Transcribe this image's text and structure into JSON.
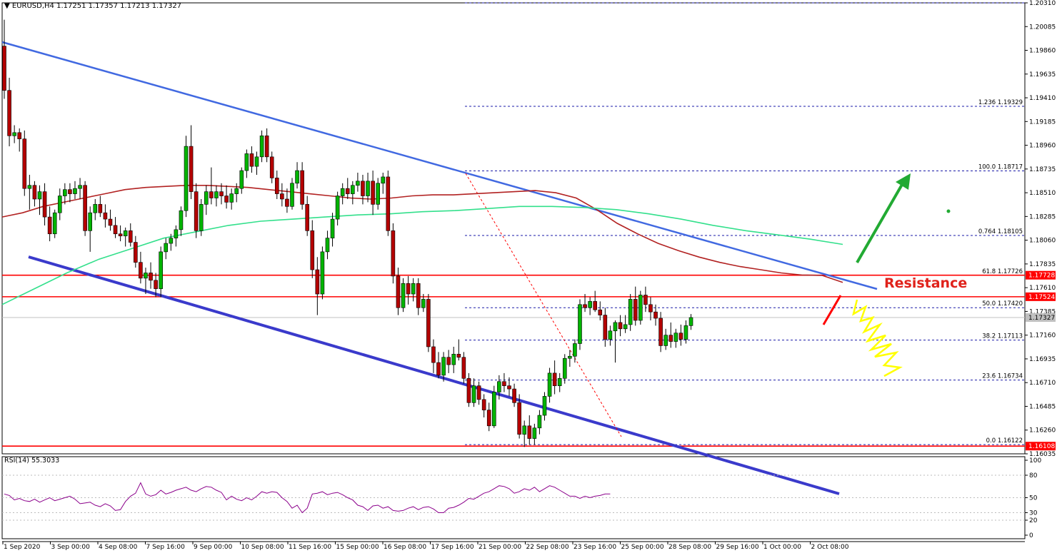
{
  "chart_data": {
    "type": "candlestick",
    "header": {
      "symbol": "EURUSD,H4",
      "ohlc": "1.17251 1.17357 1.17213 1.17327"
    },
    "price_axis": {
      "ylim": [
        1.16035,
        1.2031
      ],
      "ticks": [
        "1.20310",
        "1.20085",
        "1.19860",
        "1.19635",
        "1.19410",
        "1.19185",
        "1.18960",
        "1.18735",
        "1.18510",
        "1.18285",
        "1.18060",
        "1.17835",
        "1.17610",
        "1.17385",
        "1.17160",
        "1.16935",
        "1.16710",
        "1.16485",
        "1.16260",
        "1.16035"
      ],
      "current_price": "1.17327",
      "current_price_color": "#c0c0c0",
      "marked_prices": [
        "1.17728",
        "1.17524",
        "1.16108"
      ],
      "marked_color": "#ff0000"
    },
    "time_labels": [
      "1 Sep 2020",
      "3 Sep 00:00",
      "4 Sep 08:00",
      "7 Sep 16:00",
      "9 Sep 00:00",
      "10 Sep 08:00",
      "11 Sep 16:00",
      "15 Sep 00:00",
      "16 Sep 08:00",
      "17 Sep 16:00",
      "21 Sep 00:00",
      "22 Sep 08:00",
      "23 Sep 16:00",
      "25 Sep 00:00",
      "28 Sep 08:00",
      "29 Sep 16:00",
      "1 Oct 00:00",
      "2 Oct 08:00"
    ],
    "candles": [
      [
        1.199,
        1.2015,
        1.194,
        1.1948
      ],
      [
        1.1948,
        1.196,
        1.1895,
        1.1905
      ],
      [
        1.1905,
        1.1915,
        1.1898,
        1.1908
      ],
      [
        1.1908,
        1.1912,
        1.189,
        1.1902
      ],
      [
        1.1902,
        1.191,
        1.1848,
        1.1855
      ],
      [
        1.1855,
        1.1868,
        1.1835,
        1.1858
      ],
      [
        1.1858,
        1.1862,
        1.1838,
        1.1845
      ],
      [
        1.1845,
        1.1858,
        1.183,
        1.1852
      ],
      [
        1.1852,
        1.186,
        1.182,
        1.1828
      ],
      [
        1.1828,
        1.1838,
        1.1805,
        1.1812
      ],
      [
        1.1812,
        1.1835,
        1.1808,
        1.1832
      ],
      [
        1.1832,
        1.1855,
        1.1825,
        1.1848
      ],
      [
        1.1848,
        1.186,
        1.184,
        1.1854
      ],
      [
        1.1854,
        1.186,
        1.1842,
        1.185
      ],
      [
        1.185,
        1.1862,
        1.1845,
        1.1855
      ],
      [
        1.1855,
        1.1865,
        1.1845,
        1.1858
      ],
      [
        1.1858,
        1.1862,
        1.181,
        1.1815
      ],
      [
        1.1815,
        1.1838,
        1.1795,
        1.1832
      ],
      [
        1.1832,
        1.1845,
        1.1825,
        1.184
      ],
      [
        1.184,
        1.1848,
        1.1828,
        1.1832
      ],
      [
        1.1832,
        1.184,
        1.1818,
        1.1826
      ],
      [
        1.1826,
        1.1835,
        1.1815,
        1.182
      ],
      [
        1.182,
        1.1828,
        1.1808,
        1.1812
      ],
      [
        1.1812,
        1.182,
        1.1805,
        1.181
      ],
      [
        1.181,
        1.1818,
        1.18,
        1.1815
      ],
      [
        1.1815,
        1.1822,
        1.18,
        1.1804
      ],
      [
        1.1804,
        1.181,
        1.178,
        1.1785
      ],
      [
        1.1785,
        1.1795,
        1.1765,
        1.177
      ],
      [
        1.177,
        1.178,
        1.1755,
        1.1775
      ],
      [
        1.1775,
        1.1785,
        1.176,
        1.1768
      ],
      [
        1.1768,
        1.1775,
        1.1752,
        1.176
      ],
      [
        1.176,
        1.18,
        1.1752,
        1.1795
      ],
      [
        1.1795,
        1.1808,
        1.1788,
        1.1803
      ],
      [
        1.1803,
        1.1812,
        1.1796,
        1.1808
      ],
      [
        1.1808,
        1.182,
        1.18,
        1.1816
      ],
      [
        1.1816,
        1.1838,
        1.181,
        1.1834
      ],
      [
        1.1834,
        1.1905,
        1.1828,
        1.1895
      ],
      [
        1.1895,
        1.1915,
        1.1845,
        1.1852
      ],
      [
        1.1852,
        1.186,
        1.1808,
        1.1815
      ],
      [
        1.1815,
        1.1845,
        1.181,
        1.184
      ],
      [
        1.184,
        1.1858,
        1.183,
        1.1852
      ],
      [
        1.1852,
        1.1875,
        1.184,
        1.1846
      ],
      [
        1.1846,
        1.1858,
        1.1838,
        1.1852
      ],
      [
        1.1852,
        1.186,
        1.184,
        1.1848
      ],
      [
        1.1848,
        1.1858,
        1.1836,
        1.1842
      ],
      [
        1.1842,
        1.1855,
        1.1835,
        1.185
      ],
      [
        1.185,
        1.186,
        1.1842,
        1.1855
      ],
      [
        1.1855,
        1.1875,
        1.185,
        1.1872
      ],
      [
        1.1872,
        1.1892,
        1.1865,
        1.1888
      ],
      [
        1.1888,
        1.1895,
        1.187,
        1.1876
      ],
      [
        1.1876,
        1.189,
        1.1868,
        1.1885
      ],
      [
        1.1885,
        1.191,
        1.188,
        1.1905
      ],
      [
        1.1905,
        1.1912,
        1.188,
        1.1885
      ],
      [
        1.1885,
        1.189,
        1.186,
        1.1865
      ],
      [
        1.1865,
        1.1872,
        1.1845,
        1.185
      ],
      [
        1.185,
        1.186,
        1.1838,
        1.1845
      ],
      [
        1.1845,
        1.1855,
        1.1832,
        1.1838
      ],
      [
        1.1838,
        1.1865,
        1.1835,
        1.186
      ],
      [
        1.186,
        1.188,
        1.1855,
        1.1872
      ],
      [
        1.1872,
        1.188,
        1.1835,
        1.184
      ],
      [
        1.184,
        1.1848,
        1.181,
        1.1815
      ],
      [
        1.1815,
        1.1825,
        1.177,
        1.1778
      ],
      [
        1.1778,
        1.179,
        1.1735,
        1.1755
      ],
      [
        1.1755,
        1.18,
        1.175,
        1.1795
      ],
      [
        1.1795,
        1.1815,
        1.1788,
        1.1808
      ],
      [
        1.1808,
        1.1832,
        1.18,
        1.1826
      ],
      [
        1.1826,
        1.1852,
        1.182,
        1.1848
      ],
      [
        1.1848,
        1.186,
        1.184,
        1.1855
      ],
      [
        1.1855,
        1.1865,
        1.1845,
        1.185
      ],
      [
        1.185,
        1.1862,
        1.184,
        1.1858
      ],
      [
        1.1858,
        1.187,
        1.1852,
        1.1862
      ],
      [
        1.1862,
        1.1868,
        1.184,
        1.1848
      ],
      [
        1.1848,
        1.187,
        1.1842,
        1.1862
      ],
      [
        1.1862,
        1.1872,
        1.183,
        1.184
      ],
      [
        1.184,
        1.1865,
        1.1835,
        1.186
      ],
      [
        1.186,
        1.187,
        1.185,
        1.1866
      ],
      [
        1.1866,
        1.1872,
        1.181,
        1.1815
      ],
      [
        1.1815,
        1.1822,
        1.1765,
        1.1772
      ],
      [
        1.1772,
        1.178,
        1.1735,
        1.1742
      ],
      [
        1.1742,
        1.177,
        1.1738,
        1.1765
      ],
      [
        1.1765,
        1.1772,
        1.1745,
        1.1755
      ],
      [
        1.1755,
        1.177,
        1.1748,
        1.1765
      ],
      [
        1.1765,
        1.177,
        1.1735,
        1.1742
      ],
      [
        1.1742,
        1.1755,
        1.1738,
        1.175
      ],
      [
        1.175,
        1.1755,
        1.17,
        1.1705
      ],
      [
        1.1705,
        1.1712,
        1.168,
        1.169
      ],
      [
        1.169,
        1.17,
        1.1675,
        1.1678
      ],
      [
        1.1678,
        1.17,
        1.1672,
        1.1695
      ],
      [
        1.1695,
        1.1702,
        1.168,
        1.1688
      ],
      [
        1.1688,
        1.1705,
        1.168,
        1.1698
      ],
      [
        1.1698,
        1.1712,
        1.1692,
        1.1695
      ],
      [
        1.1695,
        1.17,
        1.167,
        1.1675
      ],
      [
        1.1675,
        1.168,
        1.1648,
        1.1652
      ],
      [
        1.1652,
        1.1675,
        1.1648,
        1.1668
      ],
      [
        1.1668,
        1.1672,
        1.165,
        1.1655
      ],
      [
        1.1655,
        1.166,
        1.1638,
        1.1645
      ],
      [
        1.1645,
        1.1652,
        1.1625,
        1.163
      ],
      [
        1.163,
        1.1668,
        1.1628,
        1.1662
      ],
      [
        1.1662,
        1.1678,
        1.1655,
        1.1672
      ],
      [
        1.1672,
        1.168,
        1.1662,
        1.1668
      ],
      [
        1.1668,
        1.1676,
        1.1658,
        1.1665
      ],
      [
        1.1665,
        1.167,
        1.1648,
        1.1652
      ],
      [
        1.1652,
        1.166,
        1.1618,
        1.1622
      ],
      [
        1.1622,
        1.1635,
        1.161,
        1.163
      ],
      [
        1.163,
        1.164,
        1.1612,
        1.1618
      ],
      [
        1.1618,
        1.1632,
        1.1612,
        1.1628
      ],
      [
        1.1628,
        1.1645,
        1.1622,
        1.164
      ],
      [
        1.164,
        1.1662,
        1.1635,
        1.1658
      ],
      [
        1.1658,
        1.1685,
        1.1652,
        1.168
      ],
      [
        1.168,
        1.1692,
        1.166,
        1.1668
      ],
      [
        1.1668,
        1.168,
        1.1662,
        1.1675
      ],
      [
        1.1675,
        1.1698,
        1.167,
        1.1694
      ],
      [
        1.1694,
        1.1702,
        1.1686,
        1.1696
      ],
      [
        1.1696,
        1.1712,
        1.169,
        1.1708
      ],
      [
        1.1708,
        1.175,
        1.1702,
        1.1745
      ],
      [
        1.1745,
        1.1755,
        1.1738,
        1.1742
      ],
      [
        1.1742,
        1.1752,
        1.1735,
        1.1748
      ],
      [
        1.1748,
        1.1758,
        1.1738,
        1.174
      ],
      [
        1.174,
        1.1748,
        1.173,
        1.1735
      ],
      [
        1.1735,
        1.1742,
        1.1705,
        1.1712
      ],
      [
        1.1712,
        1.1725,
        1.1706,
        1.172
      ],
      [
        1.172,
        1.173,
        1.169,
        1.1728
      ],
      [
        1.1728,
        1.1735,
        1.1715,
        1.1722
      ],
      [
        1.1722,
        1.1735,
        1.1718,
        1.1726
      ],
      [
        1.1726,
        1.1755,
        1.172,
        1.175
      ],
      [
        1.175,
        1.1762,
        1.1725,
        1.173
      ],
      [
        1.173,
        1.1758,
        1.1726,
        1.1754
      ],
      [
        1.1754,
        1.1762,
        1.1738,
        1.1745
      ],
      [
        1.1745,
        1.1752,
        1.173,
        1.1738
      ],
      [
        1.1738,
        1.1745,
        1.1725,
        1.1732
      ],
      [
        1.1732,
        1.1738,
        1.17,
        1.1706
      ],
      [
        1.1706,
        1.1722,
        1.1702,
        1.1716
      ],
      [
        1.1716,
        1.1728,
        1.1704,
        1.171
      ],
      [
        1.171,
        1.1722,
        1.1704,
        1.1718
      ],
      [
        1.1718,
        1.1726,
        1.1706,
        1.1712
      ],
      [
        1.1712,
        1.173,
        1.1708,
        1.1725
      ],
      [
        1.1725,
        1.1736,
        1.1721,
        1.17327
      ]
    ],
    "ma_red": [
      1.1828,
      1.1832,
      1.1838,
      1.1842,
      1.1846,
      1.185,
      1.1854,
      1.1856,
      1.1857,
      1.1858,
      1.1858,
      1.1857,
      1.1856,
      1.1854,
      1.1852,
      1.185,
      1.1848,
      1.1846,
      1.1845,
      1.1846,
      1.1848,
      1.1849,
      1.1849,
      1.185,
      1.1851,
      1.1852,
      1.1853,
      1.1851,
      1.1846,
      1.1835,
      1.1822,
      1.1812,
      1.1803,
      1.1796,
      1.179,
      1.1785,
      1.1781,
      1.1778,
      1.1775,
      1.1773,
      1.17726,
      1.1766
    ],
    "ma_green": [
      1.1745,
      1.176,
      1.1775,
      1.1788,
      1.1798,
      1.1808,
      1.1814,
      1.182,
      1.1824,
      1.1826,
      1.1828,
      1.183,
      1.1831,
      1.1833,
      1.1834,
      1.1836,
      1.1838,
      1.1838,
      1.1837,
      1.1835,
      1.1831,
      1.1826,
      1.182,
      1.1815,
      1.1811,
      1.1807,
      1.1802
    ],
    "fibonacci": [
      {
        "label": "1.236 1.19329",
        "price": 1.19329
      },
      {
        "label": "100.0 1.18717",
        "price": 1.18717
      },
      {
        "label": "0.764 1.18105",
        "price": 1.18105
      },
      {
        "label": "61.8 1.17726",
        "price": 1.17726
      },
      {
        "label": "50.0 1.17420",
        "price": 1.1742
      },
      {
        "label": "38.2 1.17113",
        "price": 1.17113
      },
      {
        "label": "23.6 1.16734",
        "price": 1.16734
      },
      {
        "label": "0.0 1.16122",
        "price": 1.16122
      }
    ],
    "annotations": {
      "resistance_label": "Resistance"
    },
    "rsi": {
      "label": "RSI(14) 55.3033",
      "ticks": [
        "100",
        "80",
        "50",
        "30",
        "20",
        "0"
      ],
      "ylim": [
        0,
        100
      ],
      "values": [
        55,
        53,
        47,
        49,
        46,
        45,
        48,
        44,
        47,
        50,
        46,
        48,
        50,
        52,
        48,
        42,
        43,
        44,
        40,
        38,
        42,
        39,
        33,
        34,
        45,
        52,
        56,
        70,
        55,
        52,
        54,
        60,
        55,
        57,
        60,
        62,
        64,
        60,
        58,
        62,
        65,
        64,
        60,
        57,
        47,
        52,
        48,
        46,
        50,
        47,
        52,
        58,
        56,
        58,
        57,
        50,
        45,
        36,
        40,
        30,
        36,
        55,
        56,
        58,
        54,
        56,
        57,
        54,
        50,
        47,
        40,
        38,
        33,
        39,
        40,
        36,
        38,
        33,
        32,
        33,
        36,
        38,
        34,
        37,
        38,
        35,
        30,
        30,
        36,
        37,
        40,
        44,
        49,
        48,
        52,
        56,
        58,
        62,
        66,
        65,
        62,
        56,
        58,
        62,
        60,
        64,
        58,
        62,
        66,
        64,
        60,
        56,
        52,
        52,
        49,
        52,
        50,
        52,
        53,
        55,
        55
      ]
    },
    "colors": {
      "up_candle": "#00b400",
      "down_candle": "#b40000",
      "ma_red": "#b22222",
      "ma_green": "#33e08c",
      "trend_line": "#4169e1",
      "channel_line": "#3a3acb",
      "arrow": "#22aa33",
      "resistance_text": "#e0221b"
    }
  }
}
